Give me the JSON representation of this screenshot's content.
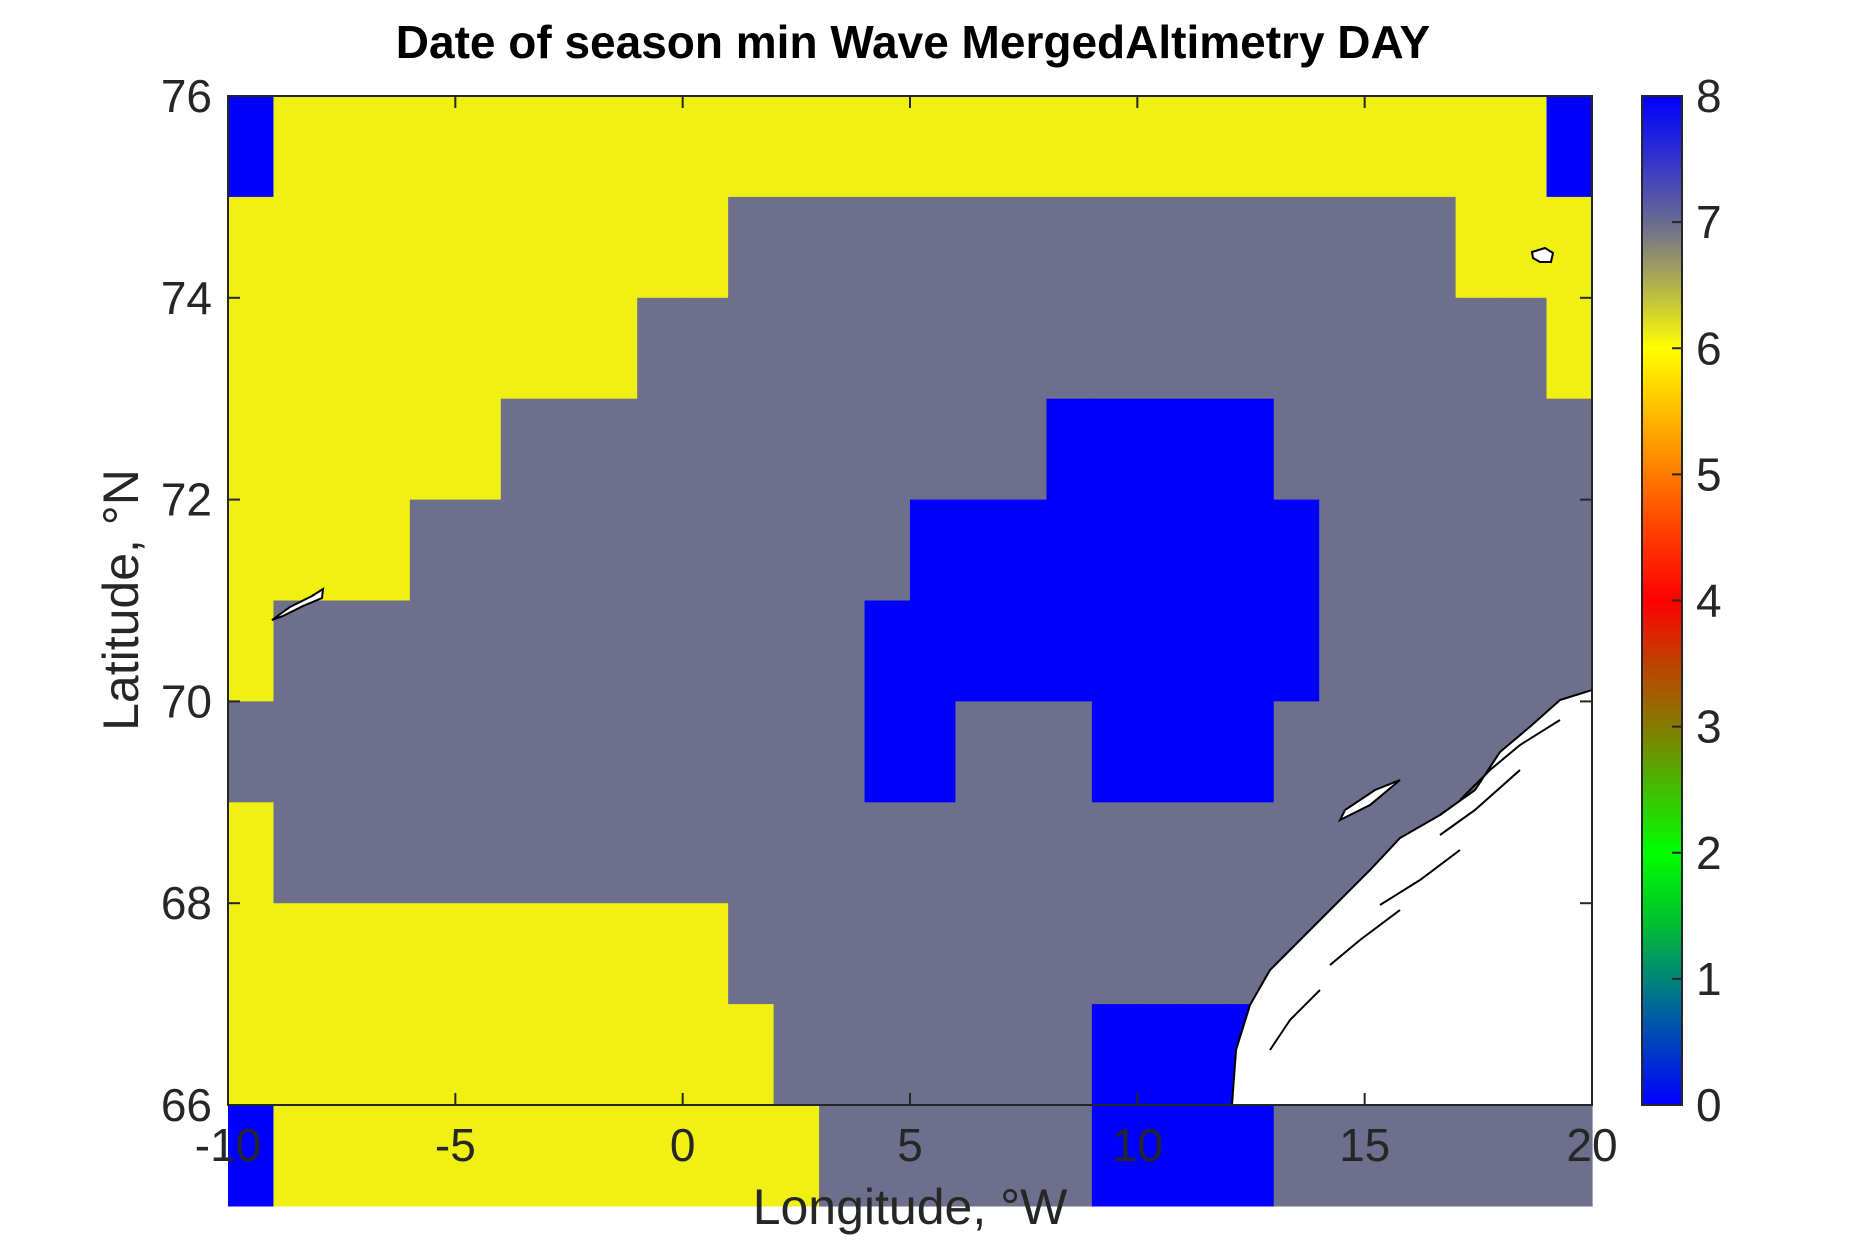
{
  "chart_data": {
    "type": "heatmap",
    "title": "Date of season min Wave MergedAltimetry DAY",
    "xlabel": "Longitude, °W",
    "ylabel": "Latitude, °N",
    "xlim": [
      -10,
      20
    ],
    "ylim": [
      66,
      76
    ],
    "xticks": [
      -10,
      -5,
      0,
      5,
      10,
      15,
      20
    ],
    "yticks": [
      66,
      68,
      70,
      72,
      74,
      76
    ],
    "grid": false,
    "colorbar": {
      "min": 0,
      "max": 8,
      "ticks": [
        0,
        1,
        2,
        3,
        4,
        5,
        6,
        7,
        8
      ],
      "colormap": "jet-like"
    },
    "cell_size_deg": 1,
    "x_start": -10,
    "y_start": 76,
    "rows": [
      "BYYYYYYYYYYYYYYYYYYYYYYYYYYYYB",
      "YYYYYYYYYYYGGGGGGGGGGGGGGGGYYY",
      "YYYYYYYYYGGGGGGGGGGGGGGGGGGGGY",
      "YYYYYYGGGGGGGGGGGGBBBBBGGGGGGG",
      "YYYYGGGGGGGGGGGBBBBBBBBBGGGGGG",
      "YGGGGGGGGGGGGGBBBBBBBBBBGGGGGG",
      "GGGGGGGGGGGGGGBBGGGBBBBGGGGGGG",
      "YGGGGGGGGGGGGGGGGGGGGGGGGGGGGG",
      "YYYYYYYYYYYGGGGGGGGGGGGGGGGGGG",
      "YYYYYYYYYYYYGGGGGGGBBBBGGGGGGG",
      "BYYYYYYYYYYYYGGGGGGBBBBGGGGGGG"
    ],
    "cell_colors": {
      "Y": "#f0f014",
      "G": "#6e6f8d",
      "B": "#0000ff"
    }
  }
}
